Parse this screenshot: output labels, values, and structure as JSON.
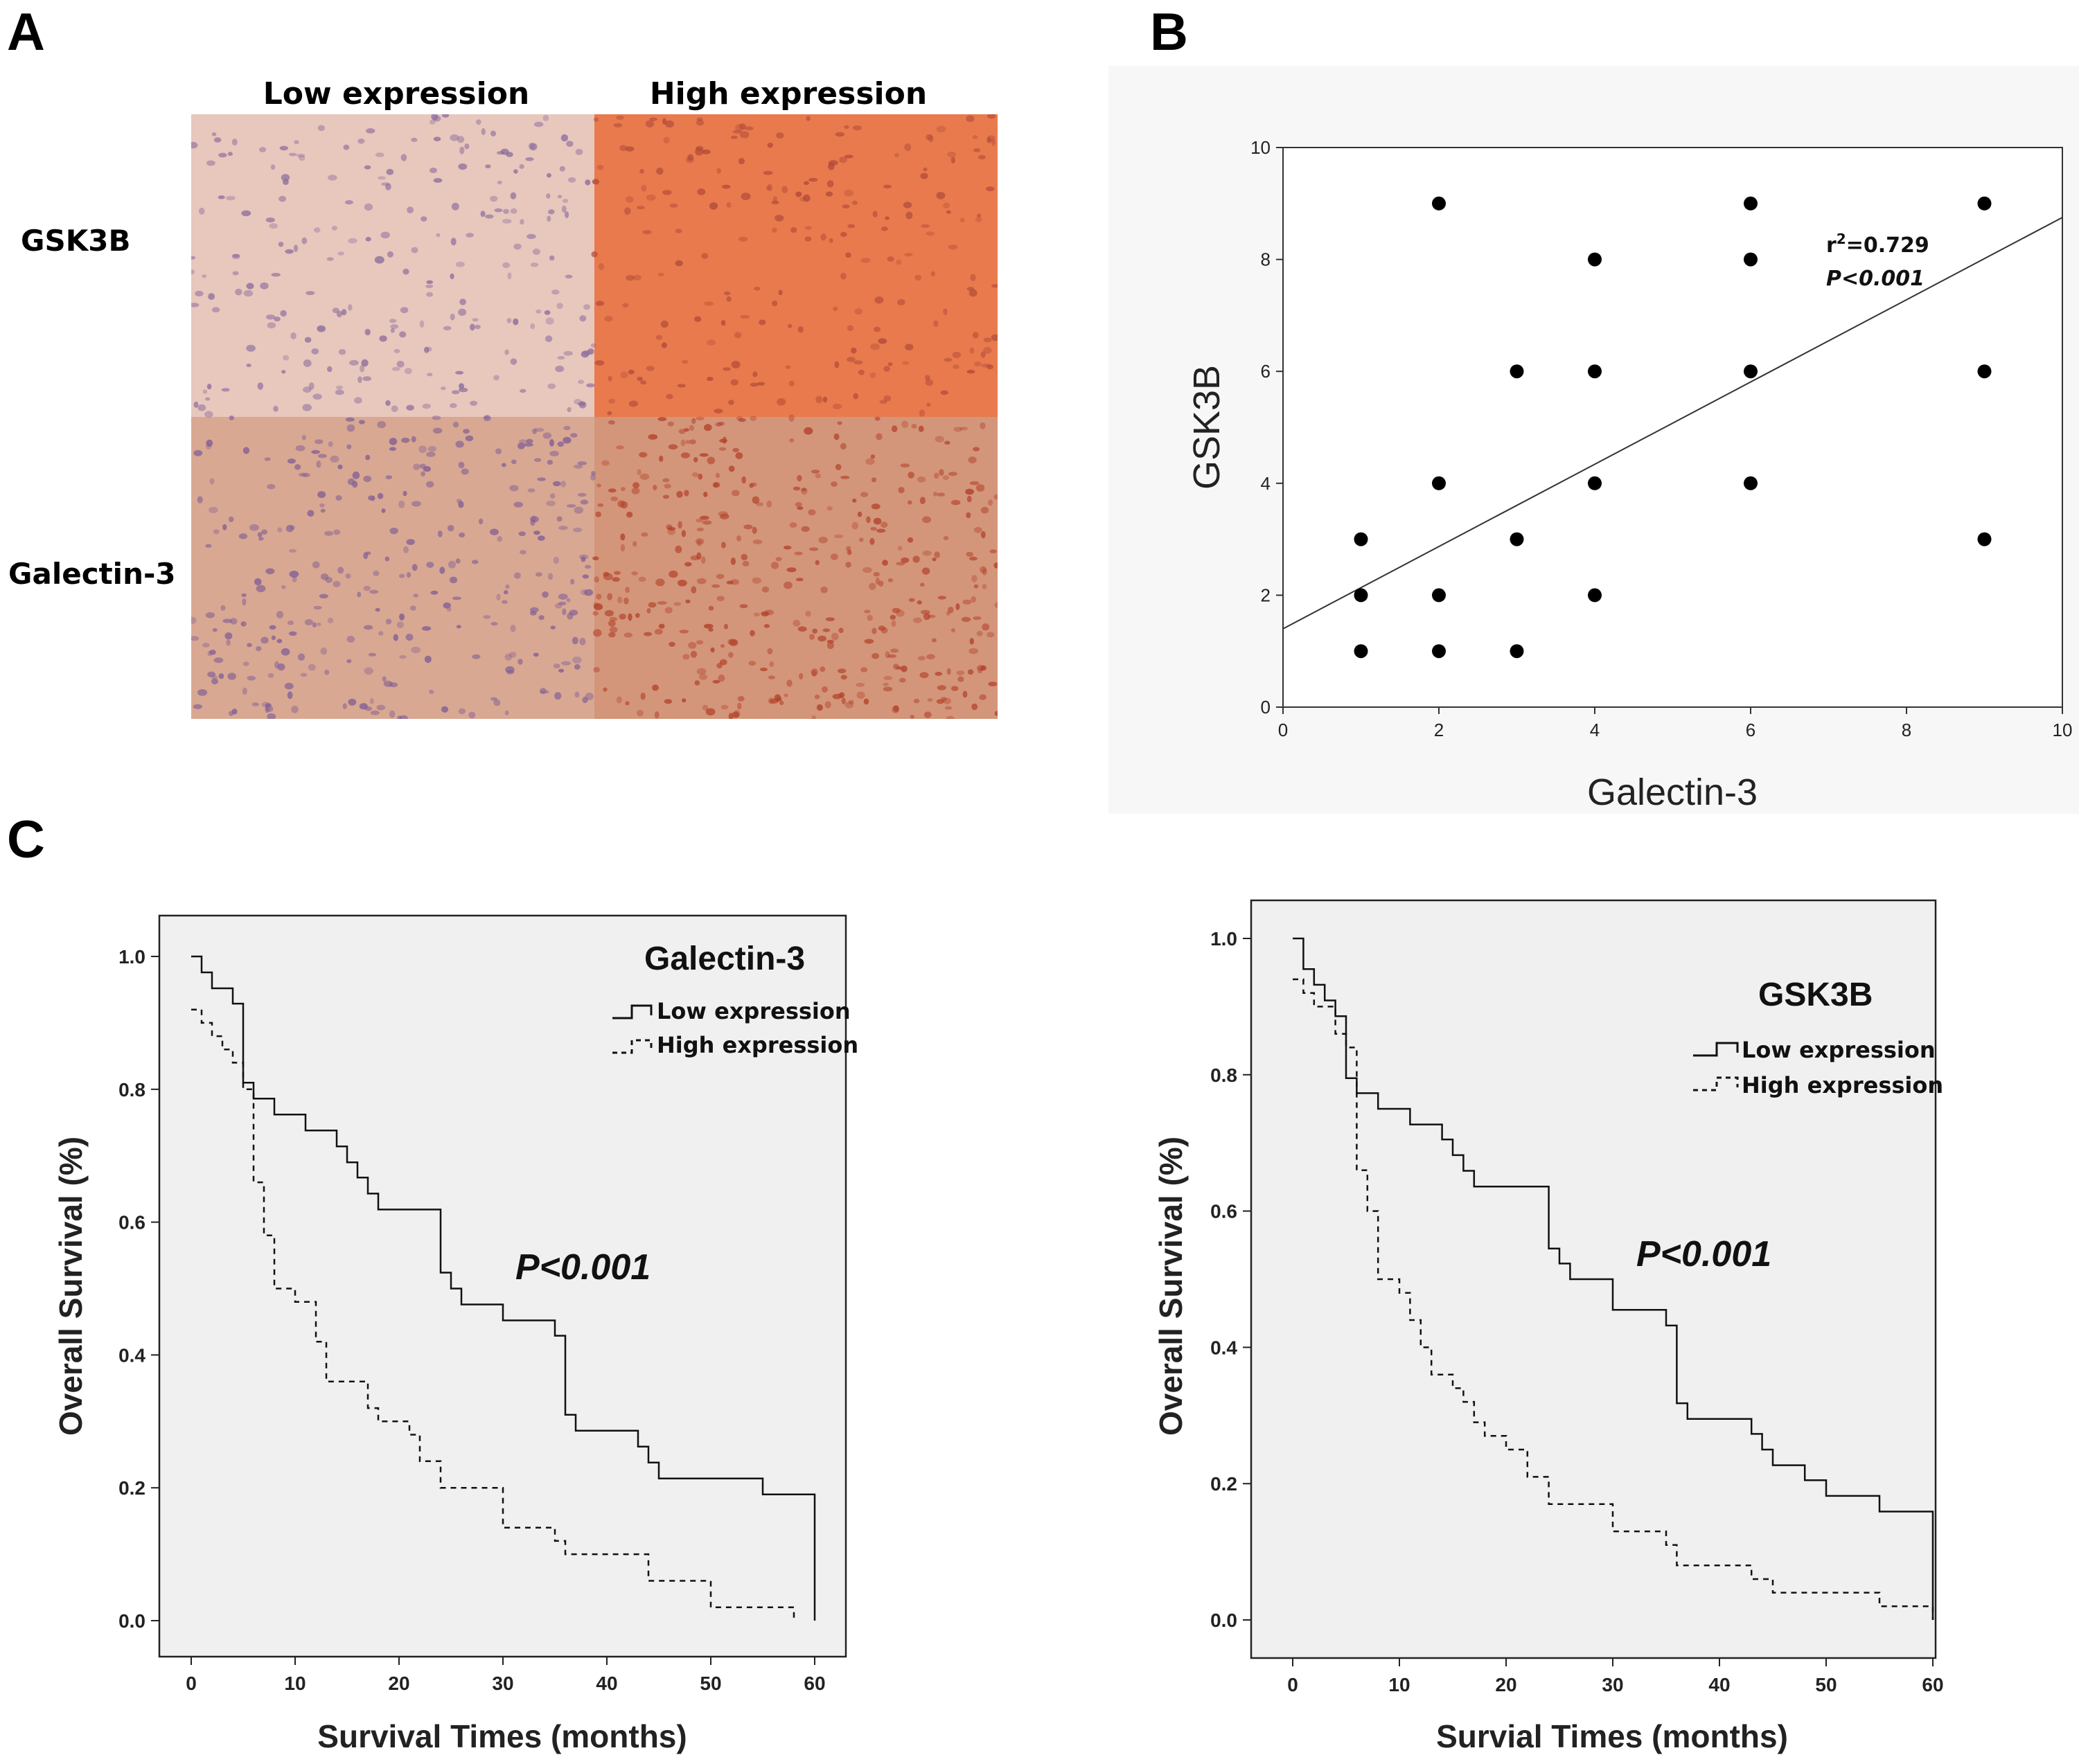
{
  "panels": {
    "a": {
      "letter": "A",
      "col_headers": [
        "Low expression",
        "High expression"
      ],
      "row_labels": [
        "GSK3B",
        "Galectin-3"
      ],
      "micrographs": [
        {
          "row": "GSK3B",
          "col": "Low expression",
          "base_color": "#e8c7bd",
          "nuclei_color": "#8a6c9c",
          "nuclei_count": 240
        },
        {
          "row": "GSK3B",
          "col": "High expression",
          "base_color": "#e97a4d",
          "nuclei_color": "#b04a3a",
          "nuclei_count": 220
        },
        {
          "row": "Galectin-3",
          "col": "Low expression",
          "base_color": "#d9a892",
          "nuclei_color": "#7f5d96",
          "nuclei_count": 320
        },
        {
          "row": "Galectin-3",
          "col": "High expression",
          "base_color": "#d3967a",
          "nuclei_color": "#b3402a",
          "nuclei_count": 420
        }
      ]
    },
    "b": {
      "letter": "B"
    },
    "c": {
      "letter": "C"
    }
  },
  "chart_data": [
    {
      "type": "scatter",
      "panel": "B",
      "xlabel": "Galectin-3",
      "ylabel": "GSK3B",
      "xlim": [
        0,
        10
      ],
      "ylim": [
        0,
        10
      ],
      "xticks": [
        0,
        2,
        4,
        6,
        8,
        10
      ],
      "yticks": [
        0,
        2,
        4,
        6,
        8,
        10
      ],
      "points": [
        [
          1,
          1
        ],
        [
          1,
          2
        ],
        [
          1,
          3
        ],
        [
          2,
          1
        ],
        [
          2,
          2
        ],
        [
          2,
          4
        ],
        [
          2,
          9
        ],
        [
          3,
          1
        ],
        [
          3,
          3
        ],
        [
          3,
          6
        ],
        [
          4,
          2
        ],
        [
          4,
          4
        ],
        [
          4,
          6
        ],
        [
          4,
          8
        ],
        [
          6,
          4
        ],
        [
          6,
          6
        ],
        [
          6,
          8
        ],
        [
          6,
          9
        ],
        [
          9,
          3
        ],
        [
          9,
          6
        ],
        [
          9,
          9
        ]
      ],
      "fit_line": {
        "x": [
          0,
          10
        ],
        "y": [
          1.4,
          8.75
        ]
      },
      "annotation": {
        "r2_prefix": "r",
        "r2_sup": "2",
        "r2_value": "=0.729",
        "p": "P<0.001"
      }
    },
    {
      "type": "line",
      "subtype": "kaplan-meier",
      "panel": "C-left",
      "title": "Galectin-3",
      "xlabel": "Survival Times (months)",
      "ylabel": "Overall Survival (%)",
      "xlim": [
        0,
        60
      ],
      "ylim": [
        0,
        1
      ],
      "xticks": [
        0,
        10,
        20,
        30,
        40,
        50,
        60
      ],
      "yticks": [
        "0.0",
        "0.2",
        "0.4",
        "0.6",
        "0.8",
        "1.0"
      ],
      "p_value": "P<0.001",
      "series": [
        {
          "name": "Low expression",
          "style": "solid",
          "steps": [
            [
              0,
              1.0
            ],
            [
              1,
              0.976
            ],
            [
              2,
              0.952
            ],
            [
              4,
              0.929
            ],
            [
              5,
              0.81
            ],
            [
              6,
              0.786
            ],
            [
              8,
              0.762
            ],
            [
              11,
              0.738
            ],
            [
              14,
              0.714
            ],
            [
              15,
              0.69
            ],
            [
              16,
              0.667
            ],
            [
              17,
              0.643
            ],
            [
              18,
              0.619
            ],
            [
              24,
              0.524
            ],
            [
              25,
              0.5
            ],
            [
              26,
              0.476
            ],
            [
              30,
              0.452
            ],
            [
              35,
              0.429
            ],
            [
              36,
              0.31
            ],
            [
              37,
              0.286
            ],
            [
              43,
              0.262
            ],
            [
              44,
              0.238
            ],
            [
              45,
              0.214
            ],
            [
              55,
              0.19
            ],
            [
              60,
              0.0
            ]
          ]
        },
        {
          "name": "High expression",
          "style": "dashed",
          "steps": [
            [
              0,
              0.92
            ],
            [
              1,
              0.9
            ],
            [
              2,
              0.88
            ],
            [
              3,
              0.86
            ],
            [
              4,
              0.84
            ],
            [
              5,
              0.8
            ],
            [
              6,
              0.66
            ],
            [
              7,
              0.58
            ],
            [
              8,
              0.5
            ],
            [
              10,
              0.48
            ],
            [
              12,
              0.42
            ],
            [
              13,
              0.36
            ],
            [
              17,
              0.32
            ],
            [
              18,
              0.3
            ],
            [
              21,
              0.28
            ],
            [
              22,
              0.24
            ],
            [
              24,
              0.2
            ],
            [
              30,
              0.14
            ],
            [
              35,
              0.12
            ],
            [
              36,
              0.1
            ],
            [
              44,
              0.06
            ],
            [
              50,
              0.02
            ],
            [
              58,
              0.0
            ]
          ]
        }
      ]
    },
    {
      "type": "line",
      "subtype": "kaplan-meier",
      "panel": "C-right",
      "title": "GSK3B",
      "xlabel": "Survial Times (months)",
      "ylabel": "Overall Survival (%)",
      "xlim": [
        0,
        60
      ],
      "ylim": [
        0,
        1
      ],
      "xticks": [
        0,
        10,
        20,
        30,
        40,
        50,
        60
      ],
      "yticks": [
        "0.0",
        "0.2",
        "0.4",
        "0.6",
        "0.8",
        "1.0"
      ],
      "p_value": "P<0.001",
      "series": [
        {
          "name": "Low expression",
          "style": "solid",
          "steps": [
            [
              0,
              1.0
            ],
            [
              1,
              0.955
            ],
            [
              2,
              0.932
            ],
            [
              3,
              0.909
            ],
            [
              4,
              0.886
            ],
            [
              5,
              0.795
            ],
            [
              6,
              0.773
            ],
            [
              8,
              0.75
            ],
            [
              11,
              0.727
            ],
            [
              14,
              0.705
            ],
            [
              15,
              0.682
            ],
            [
              16,
              0.659
            ],
            [
              17,
              0.636
            ],
            [
              24,
              0.545
            ],
            [
              25,
              0.523
            ],
            [
              26,
              0.5
            ],
            [
              30,
              0.455
            ],
            [
              35,
              0.432
            ],
            [
              36,
              0.318
            ],
            [
              37,
              0.295
            ],
            [
              43,
              0.273
            ],
            [
              44,
              0.25
            ],
            [
              45,
              0.227
            ],
            [
              48,
              0.205
            ],
            [
              50,
              0.182
            ],
            [
              55,
              0.159
            ],
            [
              60,
              0.0
            ]
          ]
        },
        {
          "name": "High expression",
          "style": "dashed",
          "steps": [
            [
              0,
              0.94
            ],
            [
              1,
              0.92
            ],
            [
              2,
              0.9
            ],
            [
              4,
              0.86
            ],
            [
              5,
              0.84
            ],
            [
              6,
              0.66
            ],
            [
              7,
              0.6
            ],
            [
              8,
              0.5
            ],
            [
              10,
              0.48
            ],
            [
              11,
              0.44
            ],
            [
              12,
              0.4
            ],
            [
              13,
              0.36
            ],
            [
              15,
              0.34
            ],
            [
              16,
              0.32
            ],
            [
              17,
              0.29
            ],
            [
              18,
              0.27
            ],
            [
              20,
              0.25
            ],
            [
              22,
              0.21
            ],
            [
              24,
              0.17
            ],
            [
              30,
              0.13
            ],
            [
              35,
              0.11
            ],
            [
              36,
              0.08
            ],
            [
              43,
              0.06
            ],
            [
              45,
              0.04
            ],
            [
              55,
              0.02
            ],
            [
              60,
              0.0
            ]
          ]
        }
      ]
    }
  ]
}
